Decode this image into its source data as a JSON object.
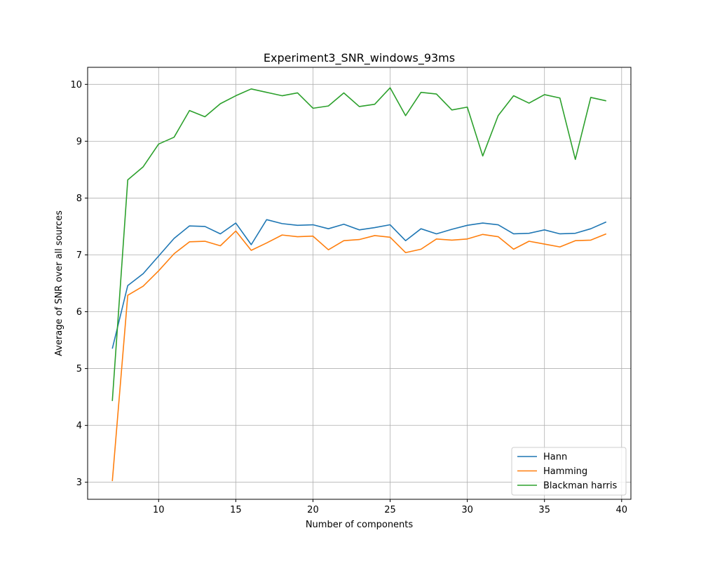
{
  "chart_data": {
    "type": "line",
    "title": "Experiment3_SNR_windows_93ms",
    "xlabel": "Number of components",
    "ylabel": "Average of SNR over all sources",
    "xlim": [
      5.4,
      40.6
    ],
    "ylim": [
      2.7,
      10.3
    ],
    "xticks": [
      10,
      15,
      20,
      25,
      30,
      35,
      40
    ],
    "yticks": [
      3,
      4,
      5,
      6,
      7,
      8,
      9,
      10
    ],
    "grid": true,
    "legend_position": "bottom-right",
    "x": [
      7,
      8,
      9,
      10,
      11,
      12,
      13,
      14,
      15,
      16,
      17,
      18,
      19,
      20,
      21,
      22,
      23,
      24,
      25,
      26,
      27,
      28,
      29,
      30,
      31,
      32,
      33,
      34,
      35,
      36,
      37,
      38,
      39
    ],
    "series": [
      {
        "name": "Hann",
        "color": "#1f77b4",
        "values": [
          5.35,
          6.46,
          6.67,
          6.98,
          7.29,
          7.51,
          7.5,
          7.37,
          7.56,
          7.18,
          7.62,
          7.55,
          7.52,
          7.53,
          7.46,
          7.54,
          7.44,
          7.48,
          7.53,
          7.25,
          7.46,
          7.37,
          7.45,
          7.52,
          7.56,
          7.53,
          7.37,
          7.38,
          7.44,
          7.37,
          7.38,
          7.46,
          7.58
        ]
      },
      {
        "name": "Hamming",
        "color": "#ff7f0e",
        "values": [
          3.02,
          6.29,
          6.45,
          6.72,
          7.02,
          7.23,
          7.24,
          7.16,
          7.42,
          7.08,
          7.21,
          7.35,
          7.32,
          7.33,
          7.09,
          7.25,
          7.27,
          7.34,
          7.31,
          7.04,
          7.1,
          7.28,
          7.26,
          7.28,
          7.36,
          7.32,
          7.1,
          7.24,
          7.19,
          7.14,
          7.25,
          7.26,
          7.37
        ]
      },
      {
        "name": "Blackman harris",
        "color": "#2ca02c",
        "values": [
          4.43,
          8.32,
          8.55,
          8.95,
          9.07,
          9.54,
          9.43,
          9.66,
          9.8,
          9.92,
          9.86,
          9.8,
          9.85,
          9.58,
          9.62,
          9.85,
          9.61,
          9.65,
          9.94,
          9.45,
          9.86,
          9.83,
          9.55,
          9.6,
          8.74,
          9.45,
          9.8,
          9.67,
          9.82,
          9.76,
          8.68,
          9.77,
          9.71
        ]
      }
    ]
  }
}
